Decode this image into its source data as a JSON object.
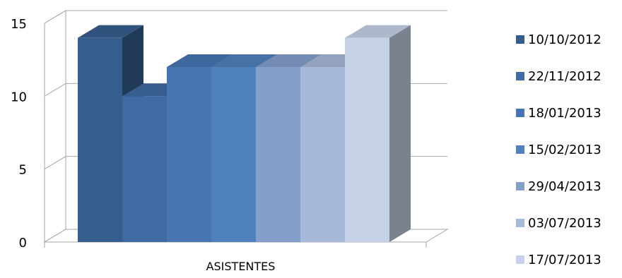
{
  "chart_data": {
    "type": "bar",
    "style": "3d-column",
    "categories": [
      "ASISTENTES"
    ],
    "series": [
      {
        "name": "10/10/2012",
        "values": [
          14
        ],
        "color": "#355e8e"
      },
      {
        "name": "22/11/2012",
        "values": [
          10
        ],
        "color": "#3e6ba2"
      },
      {
        "name": "18/01/2013",
        "values": [
          12
        ],
        "color": "#4675b2"
      },
      {
        "name": "15/02/2013",
        "values": [
          12
        ],
        "color": "#4f81bd"
      },
      {
        "name": "29/04/2013",
        "values": [
          12
        ],
        "color": "#849fcb"
      },
      {
        "name": "03/07/2013",
        "values": [
          12
        ],
        "color": "#a7b9d9"
      },
      {
        "name": "17/07/2013",
        "values": [
          14
        ],
        "color": "#c5d1e6"
      }
    ],
    "ylim": [
      0,
      15
    ],
    "yticks": [
      "0",
      "5",
      "10",
      "15"
    ],
    "grid": true,
    "legend_position": "right",
    "title": "",
    "xlabel": "",
    "ylabel": ""
  }
}
